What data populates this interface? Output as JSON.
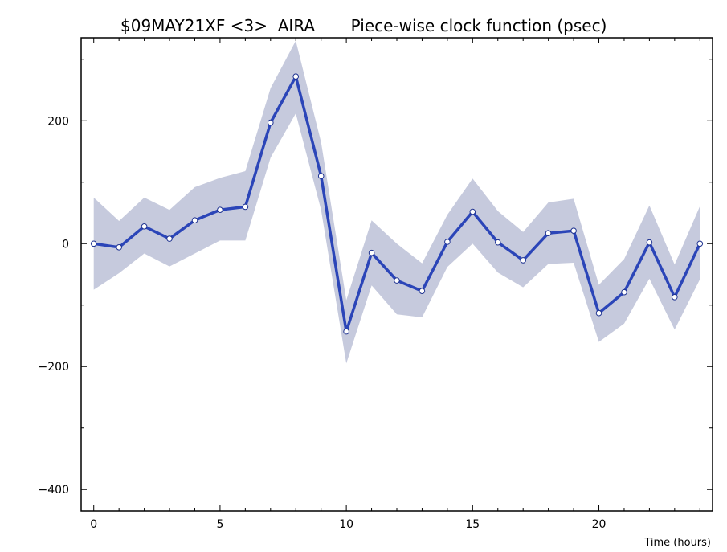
{
  "chart_data": {
    "type": "line",
    "title": "$09MAY21XF <3>  AIRA       Piece-wise clock function (psec)",
    "xlabel": "Time (hours)",
    "ylabel": "",
    "xlim": [
      -0.5,
      24.5
    ],
    "ylim": [
      -435,
      335
    ],
    "x_ticks": [
      0,
      5,
      10,
      15,
      20
    ],
    "y_ticks": [
      -400,
      -200,
      0,
      200
    ],
    "x_tick_labels": [
      "0",
      "5",
      "10",
      "15",
      "20"
    ],
    "y_tick_labels": [
      "−400",
      "−200",
      "0",
      "200"
    ],
    "grid": false,
    "series": [
      {
        "x": [
          0,
          1,
          2,
          3,
          4,
          5,
          6,
          7,
          8,
          9,
          10,
          11,
          12,
          13,
          14,
          15,
          16,
          17,
          18,
          19,
          20,
          21,
          22,
          23,
          24
        ],
        "values": [
          0,
          -6,
          28,
          8,
          38,
          55,
          60,
          197,
          272,
          110,
          -143,
          -15,
          -60,
          -77,
          3,
          52,
          2,
          -27,
          17,
          21,
          -113,
          -79,
          2,
          -87,
          0
        ],
        "upper": [
          75,
          37,
          75,
          55,
          92,
          107,
          118,
          253,
          330,
          165,
          -92,
          38,
          0,
          -32,
          47,
          106,
          53,
          19,
          67,
          73,
          -67,
          -25,
          62,
          -34,
          61
        ],
        "lower": [
          -75,
          -48,
          -16,
          -37,
          -16,
          5,
          5,
          140,
          212,
          55,
          -195,
          -68,
          -115,
          -120,
          -38,
          0,
          -47,
          -71,
          -33,
          -31,
          -160,
          -130,
          -57,
          -140,
          -58
        ]
      }
    ],
    "colors": {
      "line": "#2b45b8",
      "band": "#c6cadd",
      "marker_fill": "#ffffff"
    }
  }
}
